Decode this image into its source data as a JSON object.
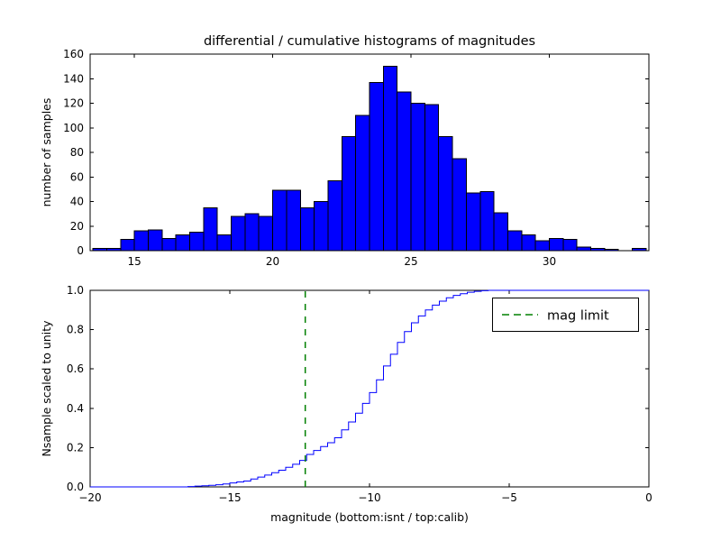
{
  "figure": {
    "title": "differential / cumulative histograms of magnitudes",
    "xlabel": "magnitude (bottom:isnt / top:calib)"
  },
  "colors": {
    "background": "#ffffff",
    "axis": "#000000",
    "histogram_fill": "#0000ff",
    "histogram_edge": "#000000",
    "cumulative_line": "#0000ff",
    "mag_limit_line": "#008000"
  },
  "chart_data": [
    {
      "type": "bar",
      "subplot": "top",
      "title": "differential / cumulative histograms of magnitudes",
      "ylabel": "number of samples",
      "xlim": [
        13.4,
        33.6
      ],
      "ylim": [
        0,
        160
      ],
      "xticks": [
        15,
        20,
        25,
        30
      ],
      "xticklabels": [
        "15",
        "20",
        "25",
        "30"
      ],
      "yticks": [
        0,
        20,
        40,
        60,
        80,
        100,
        120,
        140,
        160
      ],
      "yticklabels": [
        "0",
        "20",
        "40",
        "60",
        "80",
        "100",
        "120",
        "140",
        "160"
      ],
      "grid": false,
      "bars": {
        "bin_start": 13.5,
        "bin_width": 0.5,
        "counts": [
          2,
          2,
          9,
          16,
          17,
          10,
          13,
          15,
          35,
          13,
          28,
          30,
          28,
          49,
          49,
          35,
          40,
          57,
          93,
          110,
          137,
          150,
          129,
          120,
          119,
          93,
          75,
          47,
          48,
          31,
          16,
          13,
          8,
          10,
          9,
          3,
          2,
          1,
          0,
          2
        ]
      }
    },
    {
      "type": "line",
      "subplot": "bottom",
      "style": "step",
      "ylabel": "Nsample scaled to unity",
      "xlabel": "magnitude (bottom:isnt / top:calib)",
      "xlim": [
        -20,
        0
      ],
      "ylim": [
        0,
        1
      ],
      "xticks": [
        -20,
        -15,
        -10,
        -5,
        0
      ],
      "xticklabels": [
        "−20",
        "−15",
        "−10",
        "−5",
        "0"
      ],
      "yticks": [
        0,
        0.2,
        0.4,
        0.6,
        0.8,
        1.0
      ],
      "yticklabels": [
        "0.0",
        "0.2",
        "0.4",
        "0.6",
        "0.8",
        "1.0"
      ],
      "grid": false,
      "x": [
        -20,
        -16.5,
        -16.25,
        -16,
        -15.75,
        -15.5,
        -15.25,
        -15,
        -14.75,
        -14.5,
        -14.25,
        -14,
        -13.75,
        -13.5,
        -13.25,
        -13,
        -12.75,
        -12.5,
        -12.25,
        -12,
        -11.75,
        -11.5,
        -11.25,
        -11,
        -10.75,
        -10.5,
        -10.25,
        -10,
        -9.75,
        -9.5,
        -9.25,
        -9,
        -8.75,
        -8.5,
        -8.25,
        -8,
        -7.75,
        -7.5,
        -7.25,
        -7,
        -6.75,
        -6.5,
        -6.25,
        -6,
        -5.75,
        0
      ],
      "y": [
        0,
        0.002,
        0.004,
        0.006,
        0.008,
        0.011,
        0.015,
        0.02,
        0.025,
        0.03,
        0.04,
        0.05,
        0.06,
        0.072,
        0.085,
        0.1,
        0.115,
        0.135,
        0.165,
        0.185,
        0.205,
        0.225,
        0.25,
        0.29,
        0.33,
        0.375,
        0.425,
        0.48,
        0.545,
        0.615,
        0.675,
        0.735,
        0.79,
        0.835,
        0.87,
        0.9,
        0.925,
        0.945,
        0.962,
        0.974,
        0.983,
        0.99,
        0.995,
        0.998,
        1.0,
        1.0
      ],
      "mag_limit": -12.3,
      "legend": {
        "label": "mag limit",
        "position": "upper right"
      }
    }
  ]
}
